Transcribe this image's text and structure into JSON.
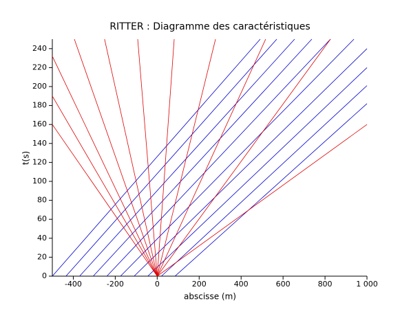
{
  "chart_data": {
    "type": "line",
    "title": "RITTER : Diagramme des caractéristiques",
    "x_label": "abscisse (m)",
    "y_label": "t(s)",
    "xlim": [
      -500,
      1000
    ],
    "ylim": [
      0,
      250
    ],
    "xticks": [
      -400,
      -200,
      0,
      200,
      400,
      600,
      800,
      {
        "value": 1000,
        "label": "1 000"
      }
    ],
    "yticks": [
      0,
      20,
      40,
      60,
      80,
      100,
      120,
      140,
      160,
      180,
      200,
      220,
      240
    ],
    "series": [
      {
        "color": "#0000cc",
        "x": [
          -500,
          491
        ],
        "values": [
          0,
          250
        ]
      },
      {
        "color": "#0000cc",
        "x": [
          -435,
          570
        ],
        "values": [
          0,
          250
        ]
      },
      {
        "color": "#0000cc",
        "x": [
          -370,
          655
        ],
        "values": [
          0,
          250
        ]
      },
      {
        "color": "#0000cc",
        "x": [
          -305,
          737
        ],
        "values": [
          0,
          250
        ]
      },
      {
        "color": "#0000cc",
        "x": [
          -240,
          826
        ],
        "values": [
          0,
          250
        ]
      },
      {
        "color": "#0000cc",
        "x": [
          -175,
          938
        ],
        "values": [
          0,
          250
        ]
      },
      {
        "color": "#0000cc",
        "x": [
          -110,
          1000
        ],
        "values": [
          0,
          240
        ]
      },
      {
        "color": "#0000cc",
        "x": [
          -45,
          1000
        ],
        "values": [
          0,
          220
        ]
      },
      {
        "color": "#0000cc",
        "x": [
          20,
          1000
        ],
        "values": [
          0,
          201
        ]
      },
      {
        "color": "#0000cc",
        "x": [
          85,
          1000
        ],
        "values": [
          0,
          182
        ]
      },
      {
        "color": "#dd0000",
        "x": [
          0,
          -500
        ],
        "values": [
          0,
          160
        ]
      },
      {
        "color": "#dd0000",
        "x": [
          0,
          -500
        ],
        "values": [
          0,
          190
        ]
      },
      {
        "color": "#dd0000",
        "x": [
          0,
          -500
        ],
        "values": [
          0,
          232
        ]
      },
      {
        "color": "#dd0000",
        "x": [
          0,
          -395
        ],
        "values": [
          0,
          250
        ]
      },
      {
        "color": "#dd0000",
        "x": [
          0,
          -251
        ],
        "values": [
          0,
          250
        ]
      },
      {
        "color": "#dd0000",
        "x": [
          0,
          -93
        ],
        "values": [
          0,
          250
        ]
      },
      {
        "color": "#dd0000",
        "x": [
          0,
          81
        ],
        "values": [
          0,
          250
        ]
      },
      {
        "color": "#dd0000",
        "x": [
          0,
          278
        ],
        "values": [
          0,
          250
        ]
      },
      {
        "color": "#dd0000",
        "x": [
          0,
          517
        ],
        "values": [
          0,
          250
        ]
      },
      {
        "color": "#dd0000",
        "x": [
          0,
          826
        ],
        "values": [
          0,
          250
        ]
      },
      {
        "color": "#dd0000",
        "x": [
          0,
          1000
        ],
        "values": [
          0,
          160
        ]
      }
    ]
  }
}
